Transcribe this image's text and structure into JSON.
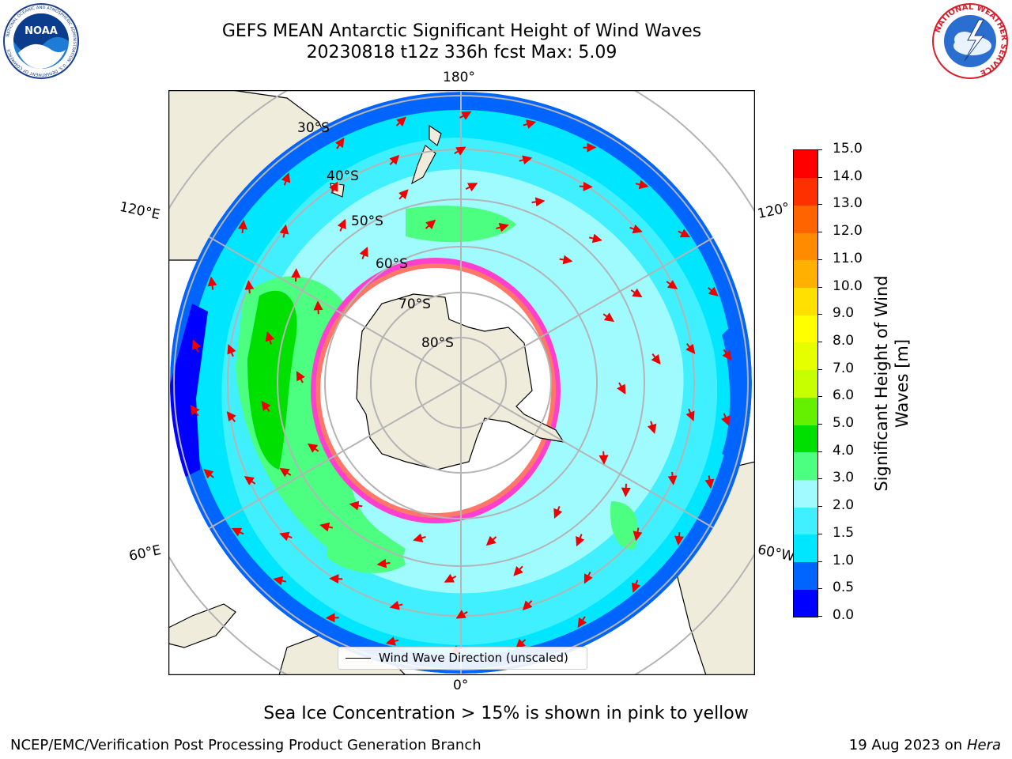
{
  "title": {
    "line1": "GEFS MEAN Antarctic Significant Height of Wind Waves",
    "line2": "20230818 t12z 336h fcst   Max: 5.09"
  },
  "caption": "Sea Ice Concentration > 15% is shown in pink to yellow",
  "footer": {
    "left": "NCEP/EMC/Verification Post Processing Product Generation Branch",
    "right_date": "19 Aug 2023 on",
    "right_host": "Hera"
  },
  "logos": {
    "noara": "NOAA",
    "noaa_ring": "NATIONAL OCEANIC AND ATMOSPHERIC ADMINISTRATION · U.S. DEPARTMENT OF COMMERCE",
    "nws_ring": "NATIONAL WEATHER SERVICE"
  },
  "map": {
    "projection": "south-polar-stereographic",
    "longitude_labels": {
      "top": "180°",
      "bottom": "0°",
      "left_upper": "120°E",
      "left_lower": "60°E",
      "right_upper": "120°",
      "right_lower": "60°W"
    },
    "latitude_labels": [
      "30°S",
      "40°S",
      "50°S",
      "60°S",
      "70°S",
      "80°S"
    ],
    "legend_label": "Wind Wave Direction (unscaled)",
    "colors": {
      "land": "#efecdc",
      "sea_ice_free_polar": "#ffffff",
      "gridline": "#b4b4b4",
      "arrow": "#ee0000"
    }
  },
  "colorbar": {
    "label": "Significant Height of Wind Waves [m]",
    "ticks": [
      "0.0",
      "0.5",
      "1.0",
      "1.5",
      "2.0",
      "3.0",
      "4.0",
      "5.0",
      "6.0",
      "7.0",
      "8.0",
      "9.0",
      "10.0",
      "11.0",
      "12.0",
      "13.0",
      "14.0",
      "15.0"
    ],
    "colors": [
      "#0000ff",
      "#0064ff",
      "#00e6ff",
      "#40f0ff",
      "#a0fbff",
      "#4dff80",
      "#00e000",
      "#64f000",
      "#c8ff00",
      "#e6ff00",
      "#ffff00",
      "#ffe000",
      "#ffb000",
      "#ff8c00",
      "#ff6400",
      "#ff3000",
      "#ff0000"
    ]
  }
}
